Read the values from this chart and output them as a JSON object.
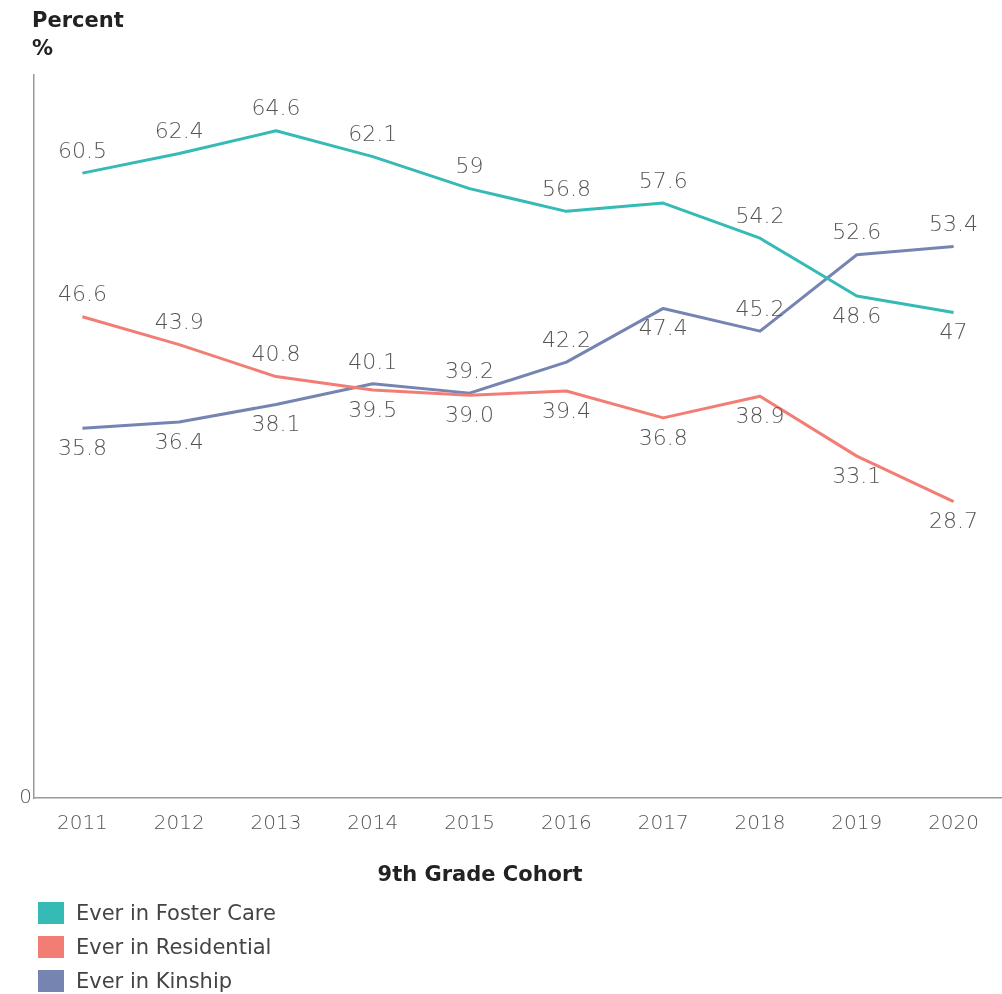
{
  "chart_data": {
    "type": "line",
    "ylabel": "Percent",
    "annotations": [
      "%",
      "0"
    ],
    "xlabel": "9th Grade Cohort",
    "categories": [
      "2011",
      "2012",
      "2013",
      "2014",
      "2015",
      "2016",
      "2017",
      "2018",
      "2019",
      "2020"
    ],
    "grid": false,
    "legend": "bottom left",
    "marker": "none",
    "line_style": "solid",
    "series": [
      {
        "name": "Ever in Foster Care",
        "color": "#36bab5",
        "values": [
          60.5,
          62.4,
          64.6,
          62.1,
          59,
          56.8,
          57.6,
          54.2,
          48.6,
          47
        ],
        "value_labels": [
          "60.5",
          "62.4",
          "64.6",
          "62.1",
          "59",
          "56.8",
          "57.6",
          "54.2",
          "48.6",
          "47"
        ]
      },
      {
        "name": "Ever in Residential",
        "color": "#f27d75",
        "values": [
          46.6,
          43.9,
          40.8,
          39.5,
          39.0,
          39.4,
          36.8,
          38.9,
          33.1,
          28.7
        ],
        "value_labels": [
          "46.6",
          "43.9",
          "40.8",
          "39.5",
          "39.0",
          "39.4",
          "36.8",
          "38.9",
          "33.1",
          "28.7"
        ]
      },
      {
        "name": "Ever in Kinship",
        "color": "#7684b1",
        "values": [
          35.8,
          36.4,
          38.1,
          40.1,
          39.2,
          42.2,
          47.4,
          45.2,
          52.6,
          53.4
        ],
        "value_labels": [
          "35.8",
          "36.4",
          "38.1",
          "40.1",
          "39.2",
          "42.2",
          "47.4",
          "45.2",
          "52.6",
          "53.4"
        ]
      }
    ]
  }
}
